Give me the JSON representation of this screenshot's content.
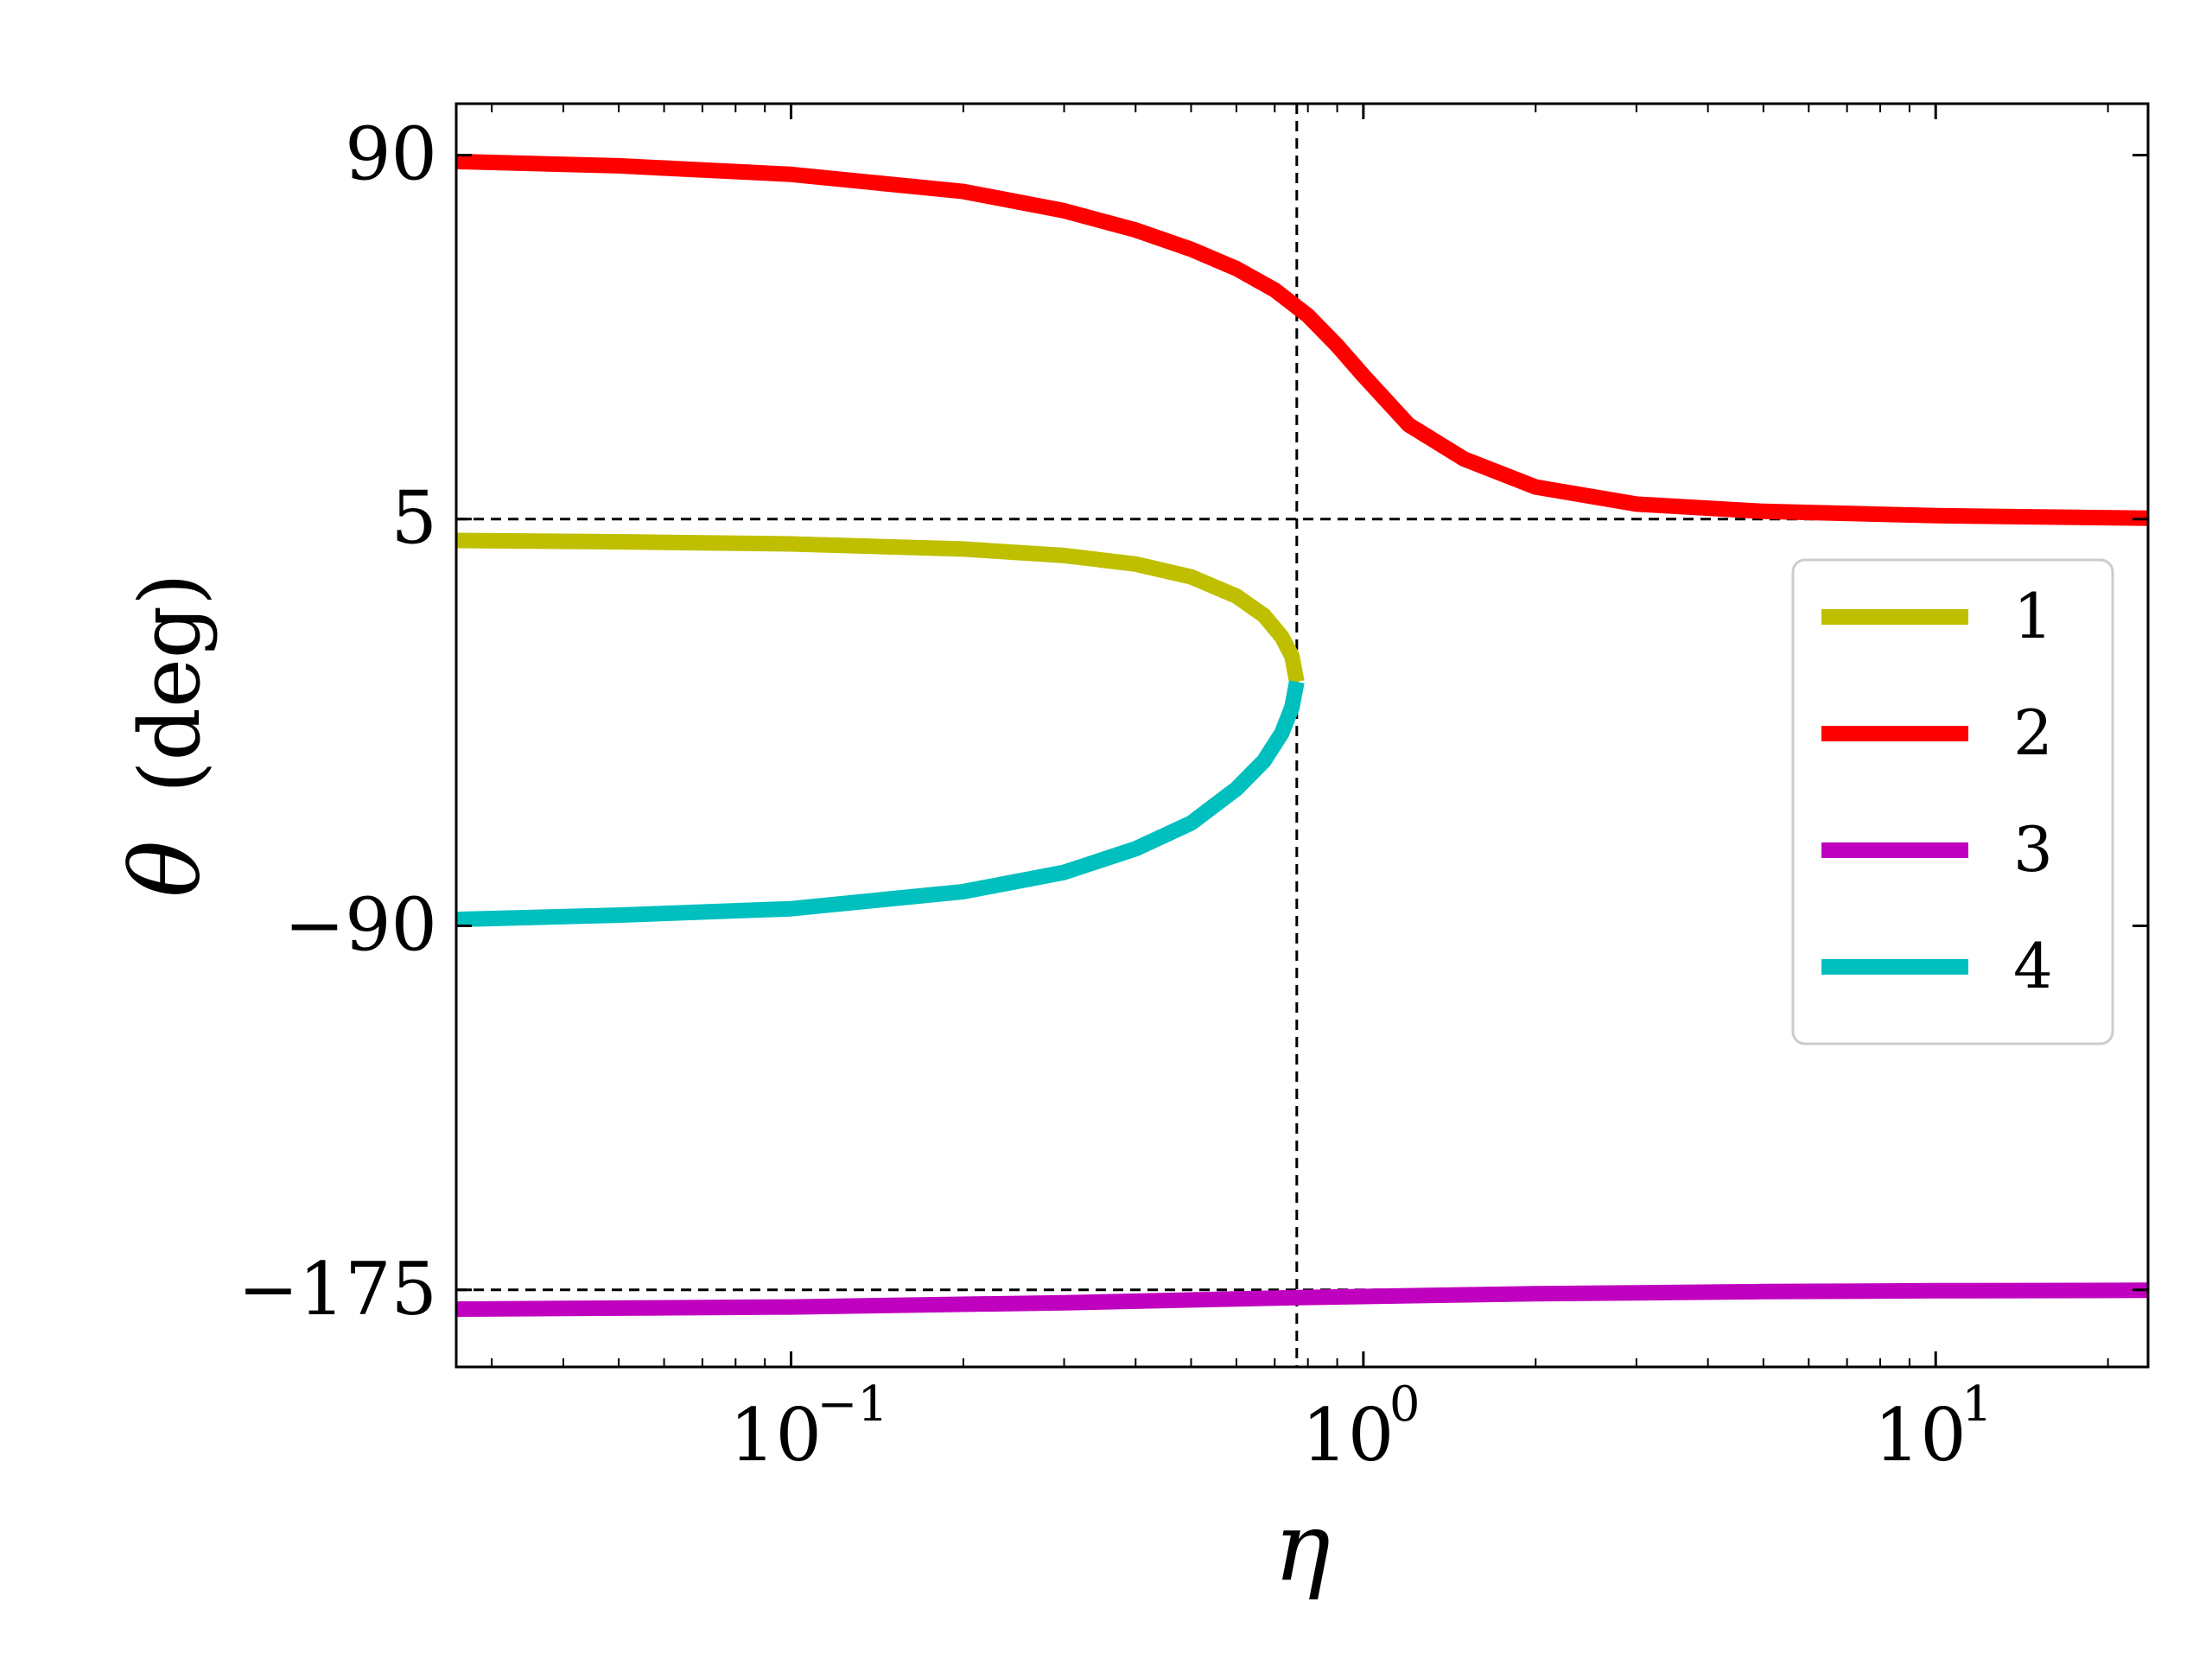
{
  "chart_data": {
    "type": "line",
    "xscale": "log",
    "xlim": [
      0.026,
      23.5
    ],
    "ylim": [
      -193,
      102
    ],
    "xlabel": "η",
    "ylabel_symbol": "θ",
    "ylabel_unit": "(deg)",
    "xticks": [
      {
        "value": 0.1,
        "base": "10",
        "exp": "−1"
      },
      {
        "value": 1,
        "base": "10",
        "exp": "0"
      },
      {
        "value": 10,
        "base": "10",
        "exp": "1"
      }
    ],
    "yticks": [
      {
        "value": 90,
        "label": "90"
      },
      {
        "value": 5,
        "label": "5"
      },
      {
        "value": -90,
        "label": "−90"
      },
      {
        "value": -175,
        "label": "−175"
      }
    ],
    "reference_lines": {
      "vertical": [
        0.765
      ],
      "horizontal": [
        5,
        -175
      ]
    },
    "grid": false,
    "legend_position": "right",
    "series": [
      {
        "name": "1",
        "color": "#bfbf00",
        "x": [
          0.026,
          0.05,
          0.1,
          0.2,
          0.3,
          0.4,
          0.5,
          0.6,
          0.67,
          0.72,
          0.75,
          0.765
        ],
        "y": [
          0,
          -0.3,
          -0.8,
          -2,
          -3.5,
          -5.5,
          -8.5,
          -13,
          -17.5,
          -22.5,
          -27,
          -33
        ]
      },
      {
        "name": "2",
        "color": "#ff0000",
        "x": [
          0.026,
          0.05,
          0.1,
          0.2,
          0.3,
          0.4,
          0.5,
          0.6,
          0.7,
          0.8,
          0.9,
          1.0,
          1.2,
          1.5,
          2,
          3,
          5,
          10,
          23.5
        ],
        "y": [
          88.5,
          87.5,
          85.5,
          81.5,
          77,
          72.5,
          68,
          63.5,
          58.5,
          52.5,
          45.5,
          38.5,
          27,
          19,
          12.5,
          8.5,
          6.8,
          5.8,
          5.2
        ]
      },
      {
        "name": "3",
        "color": "#bf00bf",
        "x": [
          0.026,
          0.1,
          0.3,
          0.765,
          2,
          5,
          10,
          23.5
        ],
        "y": [
          -179.5,
          -179,
          -178,
          -176.8,
          -175.9,
          -175.4,
          -175.2,
          -175.1
        ]
      },
      {
        "name": "4",
        "color": "#00bfbf",
        "x": [
          0.026,
          0.05,
          0.1,
          0.2,
          0.3,
          0.4,
          0.5,
          0.6,
          0.67,
          0.72,
          0.75,
          0.765
        ],
        "y": [
          -88.5,
          -87.5,
          -86,
          -82,
          -77.5,
          -72,
          -66,
          -58,
          -51.5,
          -45,
          -39,
          -33
        ]
      }
    ]
  }
}
